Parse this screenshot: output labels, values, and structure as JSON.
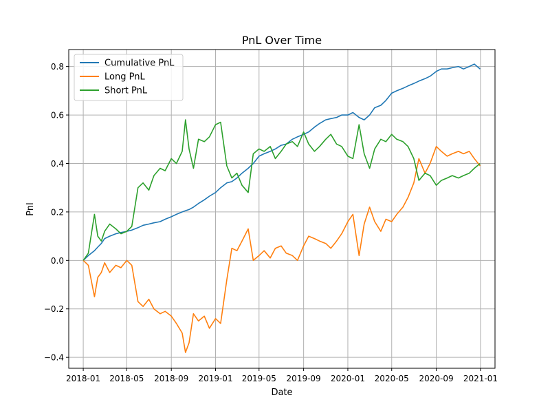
{
  "chart_data": {
    "type": "line",
    "title": "PnL Over Time",
    "xlabel": "Date",
    "ylabel": "Pnl",
    "xlim": [
      "2017-11-22",
      "2021-02-10"
    ],
    "ylim": [
      -0.445,
      0.87
    ],
    "xticks": [
      "2018-01",
      "2018-05",
      "2018-09",
      "2019-01",
      "2019-05",
      "2019-09",
      "2020-01",
      "2020-05",
      "2020-09",
      "2021-01"
    ],
    "yticks": [
      -0.4,
      -0.2,
      0.0,
      0.2,
      0.4,
      0.6,
      0.8
    ],
    "ytick_labels": [
      "−0.4",
      "−0.2",
      "0.0",
      "0.2",
      "0.4",
      "0.6",
      "0.8"
    ],
    "grid": true,
    "legend_position": "top-left",
    "x": [
      "2018-01-01",
      "2018-01-15",
      "2018-02-01",
      "2018-02-10",
      "2018-02-20",
      "2018-03-01",
      "2018-03-15",
      "2018-04-01",
      "2018-04-15",
      "2018-05-01",
      "2018-05-15",
      "2018-06-01",
      "2018-06-15",
      "2018-07-01",
      "2018-07-15",
      "2018-08-01",
      "2018-08-15",
      "2018-09-01",
      "2018-09-15",
      "2018-10-01",
      "2018-10-10",
      "2018-10-20",
      "2018-11-01",
      "2018-11-15",
      "2018-12-01",
      "2018-12-15",
      "2019-01-01",
      "2019-01-15",
      "2019-02-01",
      "2019-02-15",
      "2019-03-01",
      "2019-03-15",
      "2019-04-01",
      "2019-04-15",
      "2019-05-01",
      "2019-05-15",
      "2019-06-01",
      "2019-06-15",
      "2019-07-01",
      "2019-07-15",
      "2019-08-01",
      "2019-08-15",
      "2019-09-01",
      "2019-09-15",
      "2019-10-01",
      "2019-10-15",
      "2019-11-01",
      "2019-11-15",
      "2019-12-01",
      "2019-12-15",
      "2020-01-01",
      "2020-01-15",
      "2020-02-01",
      "2020-02-15",
      "2020-03-01",
      "2020-03-15",
      "2020-04-01",
      "2020-04-15",
      "2020-05-01",
      "2020-05-15",
      "2020-06-01",
      "2020-06-15",
      "2020-07-01",
      "2020-07-15",
      "2020-08-01",
      "2020-08-15",
      "2020-09-01",
      "2020-09-15",
      "2020-10-01",
      "2020-10-15",
      "2020-11-01",
      "2020-11-15",
      "2020-12-01",
      "2020-12-15",
      "2020-12-31"
    ],
    "series": [
      {
        "name": "Cumulative PnL",
        "color": "#1f77b4",
        "values": [
          0.0,
          0.02,
          0.04,
          0.055,
          0.07,
          0.09,
          0.1,
          0.11,
          0.115,
          0.12,
          0.125,
          0.135,
          0.145,
          0.15,
          0.155,
          0.16,
          0.17,
          0.18,
          0.19,
          0.2,
          0.205,
          0.21,
          0.22,
          0.235,
          0.25,
          0.265,
          0.28,
          0.3,
          0.32,
          0.325,
          0.34,
          0.36,
          0.38,
          0.4,
          0.43,
          0.44,
          0.45,
          0.46,
          0.475,
          0.48,
          0.5,
          0.51,
          0.52,
          0.53,
          0.55,
          0.565,
          0.58,
          0.585,
          0.59,
          0.6,
          0.6,
          0.61,
          0.59,
          0.58,
          0.6,
          0.63,
          0.64,
          0.66,
          0.69,
          0.7,
          0.71,
          0.72,
          0.73,
          0.74,
          0.75,
          0.76,
          0.78,
          0.79,
          0.79,
          0.795,
          0.8,
          0.79,
          0.8,
          0.81,
          0.79
        ]
      },
      {
        "name": "Long PnL",
        "color": "#ff7f0e",
        "values": [
          0.0,
          -0.02,
          -0.15,
          -0.07,
          -0.05,
          -0.01,
          -0.05,
          -0.02,
          -0.03,
          0.0,
          -0.02,
          -0.17,
          -0.19,
          -0.16,
          -0.2,
          -0.22,
          -0.21,
          -0.23,
          -0.26,
          -0.3,
          -0.38,
          -0.34,
          -0.22,
          -0.25,
          -0.23,
          -0.28,
          -0.24,
          -0.26,
          -0.08,
          0.05,
          0.04,
          0.08,
          0.13,
          0.0,
          0.02,
          0.04,
          0.01,
          0.05,
          0.06,
          0.03,
          0.02,
          0.0,
          0.06,
          0.1,
          0.09,
          0.08,
          0.07,
          0.05,
          0.08,
          0.11,
          0.16,
          0.19,
          0.02,
          0.15,
          0.22,
          0.16,
          0.12,
          0.17,
          0.16,
          0.19,
          0.22,
          0.26,
          0.32,
          0.42,
          0.36,
          0.4,
          0.47,
          0.45,
          0.43,
          0.44,
          0.45,
          0.44,
          0.45,
          0.42,
          0.39
        ]
      },
      {
        "name": "Short PnL",
        "color": "#2ca02c",
        "values": [
          0.0,
          0.03,
          0.19,
          0.1,
          0.08,
          0.12,
          0.15,
          0.13,
          0.11,
          0.12,
          0.14,
          0.3,
          0.32,
          0.29,
          0.35,
          0.38,
          0.37,
          0.42,
          0.4,
          0.45,
          0.58,
          0.46,
          0.38,
          0.5,
          0.49,
          0.51,
          0.56,
          0.57,
          0.39,
          0.34,
          0.36,
          0.31,
          0.28,
          0.44,
          0.46,
          0.45,
          0.47,
          0.42,
          0.45,
          0.48,
          0.49,
          0.47,
          0.53,
          0.48,
          0.45,
          0.47,
          0.5,
          0.52,
          0.48,
          0.47,
          0.43,
          0.42,
          0.56,
          0.44,
          0.38,
          0.46,
          0.5,
          0.49,
          0.52,
          0.5,
          0.49,
          0.47,
          0.42,
          0.33,
          0.36,
          0.35,
          0.31,
          0.33,
          0.34,
          0.35,
          0.34,
          0.35,
          0.36,
          0.38,
          0.4
        ]
      }
    ]
  }
}
